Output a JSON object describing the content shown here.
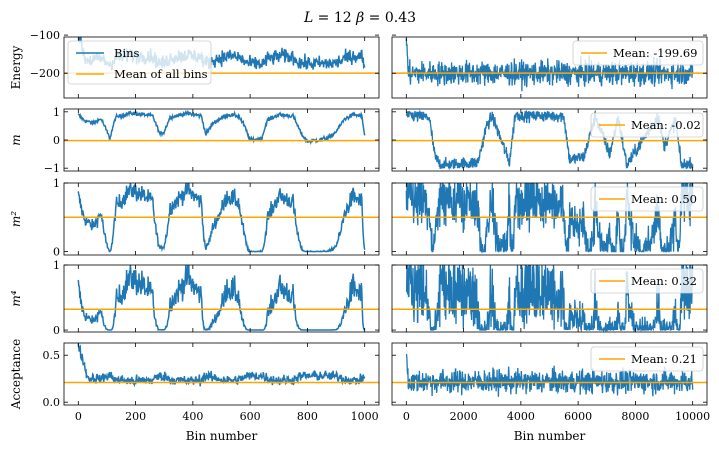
{
  "figure": {
    "title": "L = 12   β = 0.43",
    "title_parts": {
      "L": "12",
      "beta": "0.43"
    }
  },
  "colors": {
    "series": "#1f77b4",
    "mean": "#ffa500",
    "axis": "#000000"
  },
  "chart_data": {
    "type": "line",
    "rows": [
      {
        "ylabel": "Energy",
        "ylim": [
          -265,
          -105
        ],
        "yticks": [
          -200,
          -100
        ],
        "ytick_labels": [
          "−200",
          "−100"
        ],
        "mean": -199.69,
        "mean_label": "Mean: -199.69"
      },
      {
        "ylabel": "m",
        "ylim": [
          -1.1,
          1.1
        ],
        "yticks": [
          -1,
          0,
          1
        ],
        "ytick_labels": [
          "−1",
          "0",
          "1"
        ],
        "mean": -0.02,
        "mean_label": "Mean: -0.02"
      },
      {
        "ylabel": "m²",
        "ylim": [
          -0.05,
          1.0
        ],
        "yticks": [
          0,
          1
        ],
        "ytick_labels": [
          "0",
          "1"
        ],
        "mean": 0.5,
        "mean_label": "Mean: 0.50"
      },
      {
        "ylabel": "m⁴",
        "ylim": [
          -0.03,
          1.0
        ],
        "yticks": [
          0,
          1
        ],
        "ytick_labels": [
          "0",
          "1"
        ],
        "mean": 0.32,
        "mean_label": "Mean: 0.32"
      },
      {
        "ylabel": "Acceptance",
        "ylim": [
          -0.03,
          0.63
        ],
        "yticks": [
          0.0,
          0.5
        ],
        "ytick_labels": [
          "0.0",
          "0.5"
        ],
        "mean": 0.21,
        "mean_label": "Mean: 0.21"
      }
    ],
    "left": {
      "xlabel": "Bin number",
      "xlim": [
        -50,
        1050
      ],
      "xticks": [
        0,
        200,
        400,
        600,
        800,
        1000
      ],
      "legend": {
        "series": "Bins",
        "mean": "Mean of all bins",
        "position": "upper-left"
      }
    },
    "right": {
      "xlabel": "Bin number",
      "xlim": [
        -500,
        10500
      ],
      "xticks": [
        0,
        2000,
        4000,
        6000,
        8000,
        10000
      ],
      "legend_position": "upper-right"
    },
    "traces_left": {
      "x_range": [
        0,
        1000
      ],
      "magnetization_knots": [
        [
          0,
          0.9
        ],
        [
          20,
          0.7
        ],
        [
          50,
          0.6
        ],
        [
          80,
          0.75
        ],
        [
          100,
          0.3
        ],
        [
          110,
          0.05
        ],
        [
          130,
          0.8
        ],
        [
          180,
          0.95
        ],
        [
          230,
          0.9
        ],
        [
          260,
          0.85
        ],
        [
          285,
          0.2
        ],
        [
          300,
          0.3
        ],
        [
          320,
          0.8
        ],
        [
          380,
          0.95
        ],
        [
          430,
          0.85
        ],
        [
          445,
          0.2
        ],
        [
          470,
          0.6
        ],
        [
          520,
          0.9
        ],
        [
          560,
          0.85
        ],
        [
          580,
          0.5
        ],
        [
          600,
          0.0
        ],
        [
          640,
          0.05
        ],
        [
          660,
          0.7
        ],
        [
          700,
          0.9
        ],
        [
          750,
          0.85
        ],
        [
          780,
          0.2
        ],
        [
          800,
          -0.05
        ],
        [
          840,
          0.0
        ],
        [
          880,
          0.1
        ],
        [
          900,
          0.3
        ],
        [
          930,
          0.75
        ],
        [
          960,
          0.9
        ],
        [
          990,
          0.85
        ],
        [
          1000,
          0.15
        ]
      ],
      "energy_baseline": -150,
      "acceptance_baseline": 0.22,
      "acceptance_start": 0.6
    },
    "traces_right": {
      "x_range": [
        0,
        10000
      ],
      "magnetization_knots": [
        [
          0,
          0.9
        ],
        [
          800,
          0.8
        ],
        [
          1000,
          -0.6
        ],
        [
          1200,
          -0.9
        ],
        [
          2500,
          -0.8
        ],
        [
          2800,
          0.5
        ],
        [
          3000,
          0.85
        ],
        [
          3600,
          -0.8
        ],
        [
          3800,
          0.9
        ],
        [
          5500,
          0.85
        ],
        [
          5700,
          -0.7
        ],
        [
          6200,
          -0.6
        ],
        [
          6600,
          0.85
        ],
        [
          7100,
          -0.5
        ],
        [
          7400,
          0.8
        ],
        [
          7700,
          -0.9
        ],
        [
          8500,
          0.4
        ],
        [
          8800,
          0.85
        ],
        [
          9000,
          -0.2
        ],
        [
          9400,
          0.7
        ],
        [
          9600,
          -0.9
        ],
        [
          10000,
          -0.85
        ]
      ],
      "energy_center": -200,
      "acceptance_center": 0.22
    }
  }
}
